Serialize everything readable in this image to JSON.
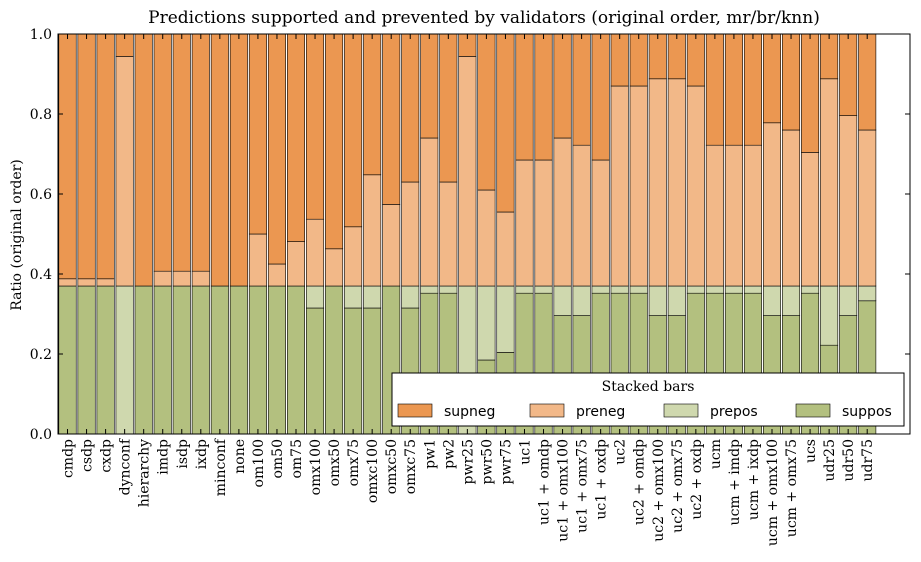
{
  "chart_data": {
    "type": "bar",
    "stacked": true,
    "title": "Predictions supported and prevented by validators (original order, mr/br/knn)",
    "xlabel": "",
    "ylabel": "Ratio (original order)",
    "ylim": [
      0,
      1.0
    ],
    "yticks": [
      "0.0",
      "0.2",
      "0.4",
      "0.6",
      "0.8",
      "1.0"
    ],
    "grid": false,
    "legend": {
      "title": "Stacked bars",
      "placement": "bottom-right",
      "ncol": 4
    },
    "categories": [
      "cmdp",
      "csdp",
      "cxdp",
      "dynconf",
      "hierarchy",
      "imdp",
      "isdp",
      "ixdp",
      "minconf",
      "none",
      "om100",
      "om50",
      "om75",
      "omx100",
      "omx50",
      "omx75",
      "omxc100",
      "omxc50",
      "omxc75",
      "pw1",
      "pw2",
      "pwr25",
      "pwr50",
      "pwr75",
      "uc1",
      "uc1 + omdp",
      "uc1 + omx100",
      "uc1 + omx75",
      "uc1 + oxdp",
      "uc2",
      "uc2 + omdp",
      "uc2 + omx100",
      "uc2 + omx75",
      "uc2 + oxdp",
      "ucm",
      "ucm + imdp",
      "ucm + ixdp",
      "ucm + omx100",
      "ucm + omx75",
      "ucs",
      "udr25",
      "udr50",
      "udr75"
    ],
    "series": [
      {
        "name": "suppos",
        "color": "#b3c07f",
        "values": [
          0.37,
          0.37,
          0.37,
          0,
          0.37,
          0.37,
          0.37,
          0.37,
          0.37,
          0.37,
          0.37,
          0.37,
          0.37,
          0.315,
          0.37,
          0.315,
          0.315,
          0.37,
          0.315,
          0.352,
          0.352,
          0,
          0.185,
          0.204,
          0.352,
          0.352,
          0.296,
          0.296,
          0.352,
          0.352,
          0.352,
          0.296,
          0.296,
          0.352,
          0.352,
          0.352,
          0.352,
          0.296,
          0.296,
          0.352,
          0.222,
          0.296,
          0.333
        ]
      },
      {
        "name": "prepos",
        "color": "#cfd8ae",
        "values": [
          0,
          0,
          0,
          0.37,
          0,
          0,
          0,
          0,
          0,
          0,
          0,
          0,
          0,
          0.055,
          0,
          0.055,
          0.055,
          0,
          0.055,
          0.018,
          0.018,
          0.37,
          0.185,
          0.166,
          0.018,
          0.018,
          0.074,
          0.074,
          0.018,
          0.018,
          0.018,
          0.074,
          0.074,
          0.018,
          0.018,
          0.018,
          0.018,
          0.074,
          0.074,
          0.018,
          0.148,
          0.074,
          0.037
        ]
      },
      {
        "name": "preneg",
        "color": "#f2b888",
        "values": [
          0.018,
          0.018,
          0.018,
          0.574,
          0,
          0.037,
          0.037,
          0.037,
          0,
          0,
          0.13,
          0.055,
          0.111,
          0.167,
          0.093,
          0.148,
          0.278,
          0.204,
          0.26,
          0.37,
          0.26,
          0.574,
          0.24,
          0.185,
          0.315,
          0.315,
          0.37,
          0.352,
          0.315,
          0.5,
          0.5,
          0.518,
          0.518,
          0.5,
          0.352,
          0.352,
          0.352,
          0.408,
          0.39,
          0.334,
          0.518,
          0.426,
          0.39
        ]
      },
      {
        "name": "supneg",
        "color": "#eb9751",
        "values": [
          0.612,
          0.612,
          0.612,
          0.056,
          0.63,
          0.593,
          0.593,
          0.593,
          0.63,
          0.63,
          0.5,
          0.575,
          0.519,
          0.463,
          0.537,
          0.482,
          0.352,
          0.426,
          0.37,
          0.26,
          0.37,
          0.056,
          0.39,
          0.445,
          0.315,
          0.315,
          0.26,
          0.278,
          0.315,
          0.13,
          0.13,
          0.112,
          0.112,
          0.13,
          0.278,
          0.278,
          0.278,
          0.222,
          0.24,
          0.296,
          0.112,
          0.204,
          0.24
        ]
      }
    ]
  }
}
